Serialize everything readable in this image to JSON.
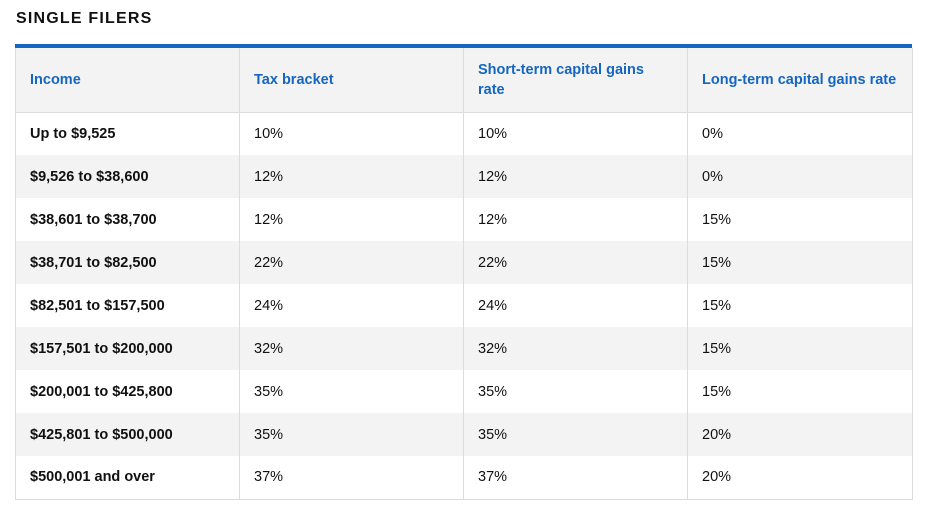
{
  "section_title": "SINGLE FILERS",
  "colors": {
    "accent": "#1566c0",
    "row_alt": "#f3f3f3",
    "border": "#dcdcdc"
  },
  "table": {
    "headers": [
      "Income",
      "Tax bracket",
      "Short-term capital gains rate",
      "Long-term capital gains rate"
    ],
    "rows": [
      [
        "Up to $9,525",
        "10%",
        "10%",
        "0%"
      ],
      [
        "$9,526 to $38,600",
        "12%",
        "12%",
        "0%"
      ],
      [
        "$38,601 to $38,700",
        "12%",
        "12%",
        "15%"
      ],
      [
        "$38,701 to $82,500",
        "22%",
        "22%",
        "15%"
      ],
      [
        "$82,501 to $157,500",
        "24%",
        "24%",
        "15%"
      ],
      [
        "$157,501 to $200,000",
        "32%",
        "32%",
        "15%"
      ],
      [
        "$200,001 to $425,800",
        "35%",
        "35%",
        "15%"
      ],
      [
        "$425,801 to $500,000",
        "35%",
        "35%",
        "20%"
      ],
      [
        "$500,001 and over",
        "37%",
        "37%",
        "20%"
      ]
    ]
  }
}
